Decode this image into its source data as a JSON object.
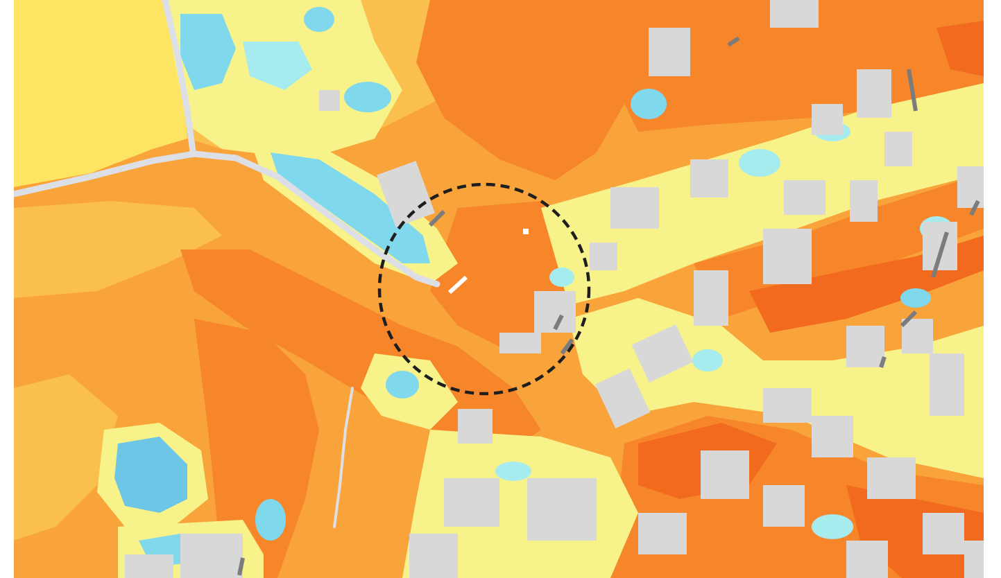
{
  "map": {
    "kind": "thermal-raster",
    "colors": {
      "hottest": "#f26a1e",
      "hot": "#f7852a",
      "warm": "#f9a33b",
      "mild": "#fbbf4e",
      "cool_yellow": "#fde462",
      "pale_yellow": "#f7f38a",
      "cyan_mid": "#a6ecef",
      "cool_cyan": "#7fd8ec",
      "coldest": "#6ec6e6",
      "building": "#d8d8d8",
      "building_shadow": "#7c7c7c",
      "road": "#dcdfe6"
    },
    "highlight": {
      "shape": "dashed-circle",
      "stroke_color": "#1e1e1e"
    }
  }
}
